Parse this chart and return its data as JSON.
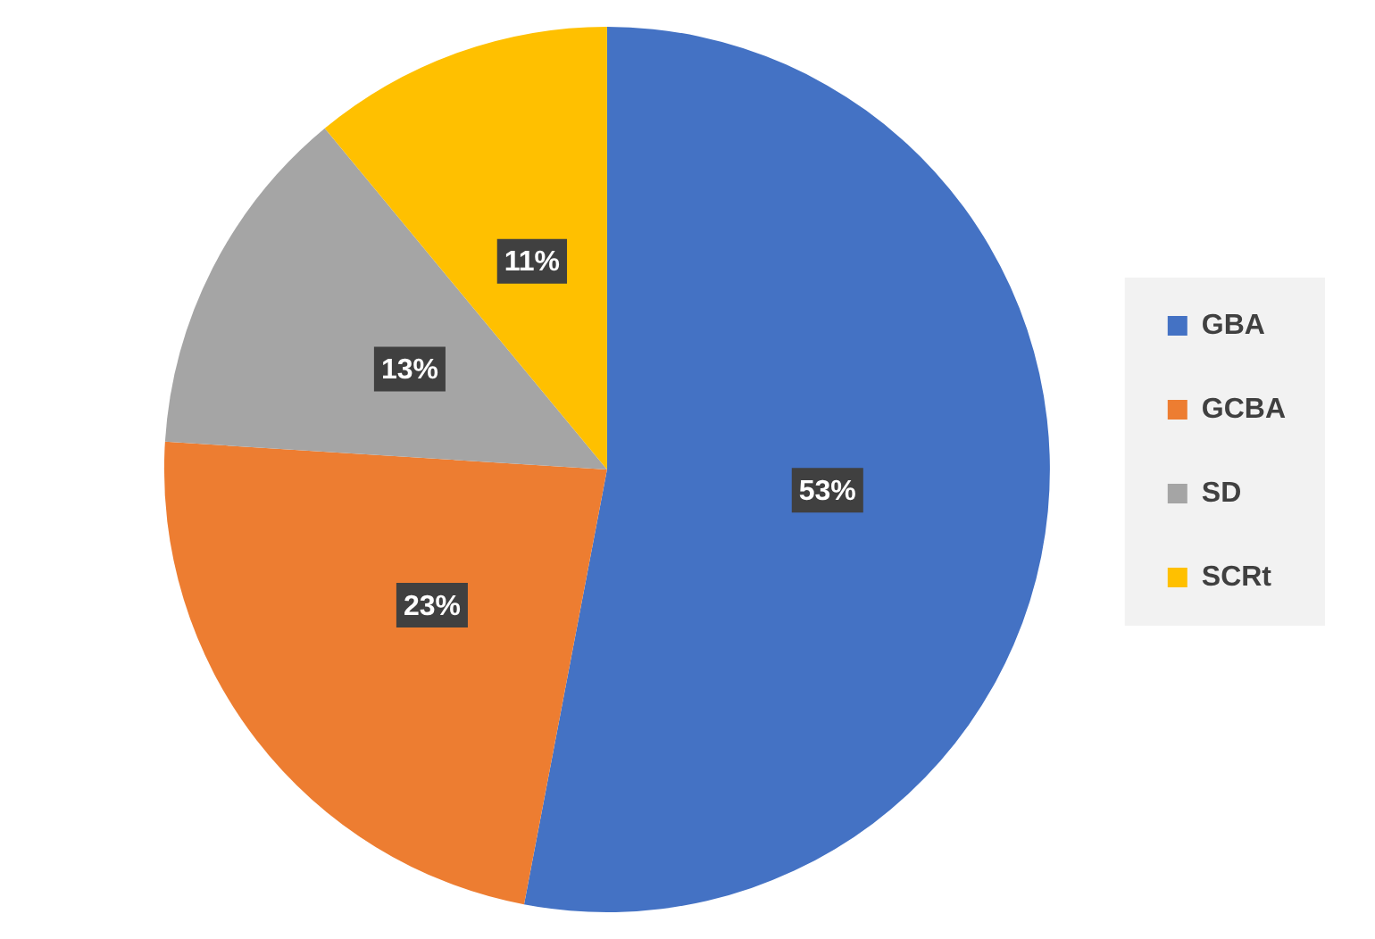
{
  "chart_data": {
    "type": "pie",
    "categories": [
      "GBA",
      "GCBA",
      "SD",
      "SCRt"
    ],
    "values": [
      53,
      23,
      13,
      11
    ],
    "colors": [
      "#4472c4",
      "#ed7d31",
      "#a5a5a5",
      "#ffc000"
    ],
    "value_labels": [
      "53%",
      "23%",
      "13%",
      "11%"
    ],
    "legend": "right"
  }
}
